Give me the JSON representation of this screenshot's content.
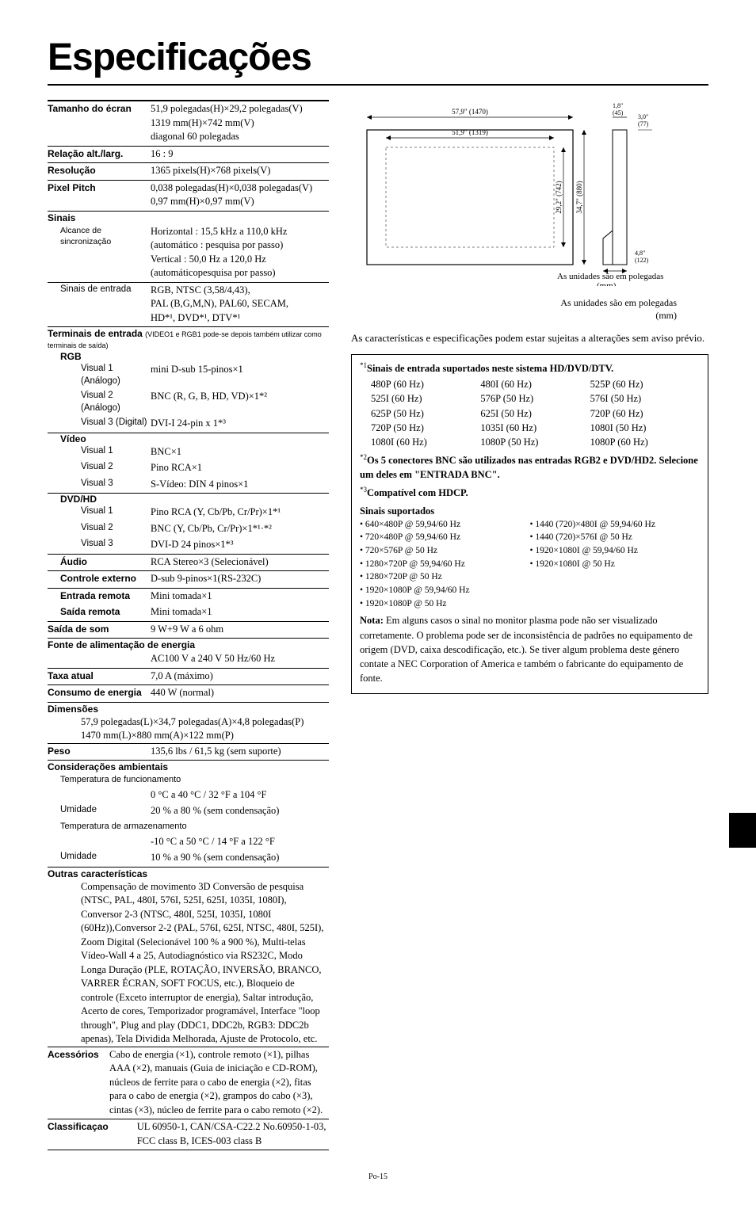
{
  "title": "Especificações",
  "footer": "Po-15",
  "specs": {
    "tamanho_ecran": {
      "label": "Tamanho do écran",
      "value": "51,9 polegadas(H)×29,2 polegadas(V)\n1319 mm(H)×742 mm(V)\ndiagonal 60 polegadas"
    },
    "relacao": {
      "label": "Relação alt./larg.",
      "value": "16 : 9"
    },
    "resolucao": {
      "label": "Resolução",
      "value": "1365 pixels(H)×768 pixels(V)"
    },
    "pixel_pitch": {
      "label": "Pixel Pitch",
      "value": "0,038 polegadas(H)×0,038 polegadas(V)\n0,97 mm(H)×0,97 mm(V)"
    },
    "sinais_head": "Sinais",
    "alcance": {
      "label": "Alcance de sincronização",
      "value": "Horizontal : 15,5 kHz a 110,0 kHz\n(automático : pesquisa por passo)\nVertical : 50,0 Hz a 120,0 Hz\n(automáticopesquisa por passo)"
    },
    "sinais_entrada": {
      "label": "Sinais de entrada",
      "value": "RGB, NTSC (3,58/4,43),\nPAL (B,G,M,N), PAL60, SECAM,\nHD*¹, DVD*¹, DTV*¹"
    },
    "terminais_head": "Terminais de entrada",
    "terminais_parens": "(VIDEO1 e RGB1 pode-se depois também utilizar como terminais de saída)",
    "rgb_head": "RGB",
    "visual1_a": {
      "label": "Visual 1 (Análogo)",
      "value": "mini D-sub 15-pinos×1"
    },
    "visual2_a": {
      "label": "Visual 2 (Análogo)",
      "value": "BNC (R, G, B, HD, VD)×1*²"
    },
    "visual3_d": {
      "label": "Visual 3 (Digital)",
      "value": "DVI-I 24-pin x 1*³"
    },
    "video_head": "Vídeo",
    "v_visual1": {
      "label": "Visual 1",
      "value": "BNC×1"
    },
    "v_visual2": {
      "label": "Visual 2",
      "value": "Pino RCA×1"
    },
    "v_visual3": {
      "label": "Visual 3",
      "value": "S-Vídeo: DIN 4 pinos×1"
    },
    "dvd_head": "DVD/HD",
    "d_visual1": {
      "label": "Visual 1",
      "value": "Pino RCA (Y, Cb/Pb, Cr/Pr)×1*¹"
    },
    "d_visual2": {
      "label": "Visual 2",
      "value": "BNC (Y, Cb/Pb, Cr/Pr)×1*¹·*²"
    },
    "d_visual3": {
      "label": "Visual 3",
      "value": "DVI-D 24 pinos×1*³"
    },
    "audio": {
      "label": "Áudio",
      "value": "RCA Stereo×3 (Selecionável)"
    },
    "controle_externo": {
      "label": "Controle externo",
      "value": "D-sub 9-pinos×1(RS-232C)"
    },
    "entrada_remota": {
      "label": "Entrada remota",
      "value": "Mini tomada×1"
    },
    "saida_remota": {
      "label": "Saída remota",
      "value": "Mini tomada×1"
    },
    "saida_som": {
      "label": "Saída de som",
      "value": "9 W+9 W a 6 ohm"
    },
    "fonte_head": "Fonte de alimentação de energia",
    "fonte_value": "AC100 V a 240 V 50 Hz/60 Hz",
    "taxa": {
      "label": "Taxa atual",
      "value": "7,0 A (máximo)"
    },
    "consumo": {
      "label": "Consumo de energia",
      "value": "440 W (normal)"
    },
    "dimensoes_head": "Dimensões",
    "dimensoes_value": "57,9 polegadas(L)×34,7 polegadas(A)×4,8 polegadas(P)\n1470 mm(L)×880 mm(A)×122 mm(P)",
    "peso": {
      "label": "Peso",
      "value": "135,6 lbs / 61,5 kg (sem suporte)"
    },
    "amb_head": "Considerações ambientais",
    "temp_func": {
      "label": "Temperatura de funcionamento",
      "value": "0 °C a 40 °C / 32 °F a 104 °F"
    },
    "umidade1": {
      "label": "Umidade",
      "value": "20 % a 80 % (sem condensação)"
    },
    "temp_arm": {
      "label": "Temperatura de armazenamento",
      "value": "-10 °C a 50 °C / 14 °F a 122 °F"
    },
    "umidade2": {
      "label": "Umidade",
      "value": "10 % a 90 % (sem condensação)"
    },
    "outras_head": "Outras características",
    "outras_value": "Compensação de movimento 3D Conversão de pesquisa (NTSC, PAL, 480I, 576I, 525I, 625I, 1035I, 1080I), Conversor 2-3 (NTSC, 480I, 525I, 1035I, 1080I (60Hz)),Conversor 2-2 (PAL, 576I, 625I, NTSC, 480I, 525I), Zoom Digital (Selecionável 100 % a 900 %), Multi-telas Vídeo-Wall 4 a 25, Autodiagnóstico via RS232C, Modo Longa Duração (PLE, ROTAÇÃO, INVERSÃO, BRANCO, VARRER ÉCRAN, SOFT FOCUS, etc.), Bloqueio de controle (Exceto interruptor de energia), Saltar introdução, Acerto de cores, Temporizador programável, Interface \"loop through\", Plug and play (DDC1, DDC2b, RGB3: DDC2b apenas), Tela Dividida Melhorada, Ajuste de Protocolo, etc.",
    "acessorios": {
      "label": "Acessórios",
      "value": "Cabo de energia (×1), controle remoto (×1), pilhas AAA (×2), manuais (Guia de iniciação e CD-ROM), núcleos de ferrite para o cabo de energia (×2), fitas para o cabo de energia (×2), grampos do cabo (×3), cintas (×3), núcleo de ferrite para o cabo remoto (×2)."
    },
    "classificacao": {
      "label": "Classificaçao",
      "value": "UL 60950-1, CAN/CSA-C22.2 No.60950-1-03, FCC class B, ICES-003 class B"
    }
  },
  "diagram": {
    "caption_line1": "As unidades são em polegadas",
    "caption_line2": "(mm)",
    "labels": {
      "w_out": "57,9\" (1470)",
      "w_in": "51,9\" (1319)",
      "h_in": "29,2\" (742)",
      "h_out": "34,7\" (880)",
      "d_top": "1,8\"\n(45)",
      "d_bot": "4,8\"\n(122)",
      "d_side": "3,0\"\n(77)"
    }
  },
  "changes_note": "As características e especificações podem estar sujeitas a alterações sem aviso prévio.",
  "notebox": {
    "star1_title": "Sinais de entrada suportados neste sistema HD/DVD/DTV.",
    "signals": [
      [
        "480P (60 Hz)",
        "480I (60 Hz)",
        "525P (60 Hz)"
      ],
      [
        "525I (60 Hz)",
        "576P (50 Hz)",
        "576I (50 Hz)"
      ],
      [
        "625P (50 Hz)",
        "625I (50 Hz)",
        "720P (60 Hz)"
      ],
      [
        "720P (50 Hz)",
        "1035I (60 Hz)",
        "1080I (50 Hz)"
      ],
      [
        "1080I (60 Hz)",
        "1080P (50 Hz)",
        "1080P (60 Hz)"
      ]
    ],
    "star2_text": "Os 5 conectores BNC são utilizados nas entradas RGB2 e DVD/HD2. Selecione um deles em \"ENTRADA BNC\".",
    "star3_text": "Compatível com HDCP.",
    "supported_title": "Sinais suportados",
    "supported_left": [
      "640×480P @ 59,94/60 Hz",
      "720×480P @ 59,94/60 Hz",
      "720×576P @ 50 Hz",
      "1280×720P @ 59,94/60 Hz",
      "1280×720P @ 50 Hz",
      "1920×1080P @ 59,94/60 Hz",
      "1920×1080P @ 50 Hz"
    ],
    "supported_right": [
      "1440 (720)×480I @ 59,94/60 Hz",
      "1440 (720)×576I @ 50 Hz",
      "1920×1080I @ 59,94/60 Hz",
      "1920×1080I @ 50 Hz"
    ],
    "nota_label": "Nota:",
    "nota_text": "Em alguns casos o sinal no monitor plasma pode não ser visualizado corretamente. O problema pode ser de inconsistência de padrões no equipamento de origem (DVD, caixa descodificação, etc.). Se tiver algum problema deste género contate a NEC Corporation of America e também o fabricante do equipamento de fonte."
  }
}
